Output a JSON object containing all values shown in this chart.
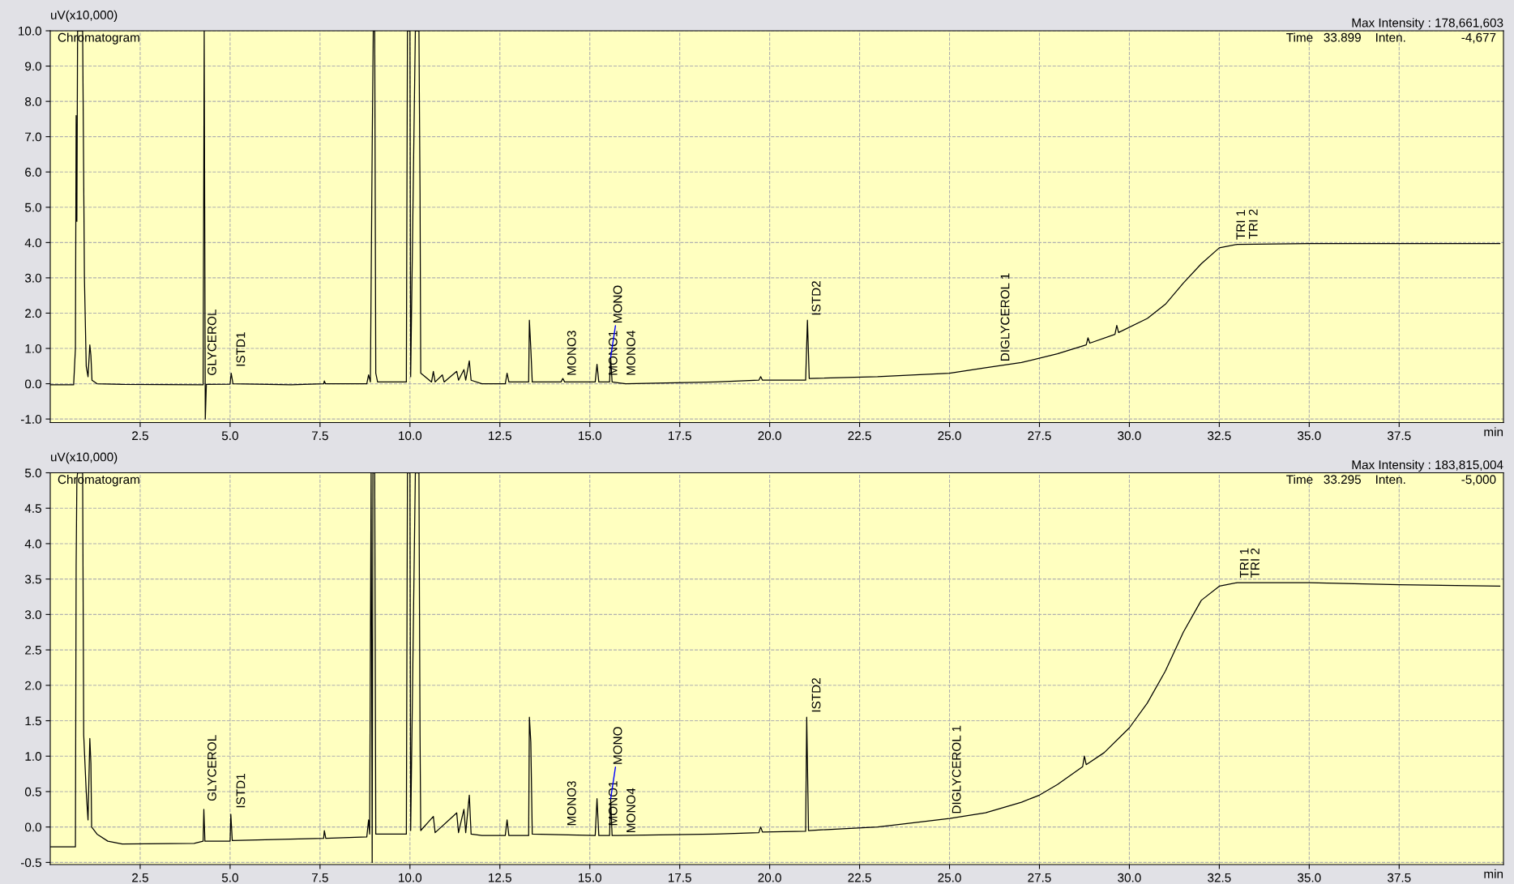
{
  "chart_data": [
    {
      "type": "line",
      "ylabel": "uV(x10,000)",
      "xlabel": "min",
      "grid": true,
      "legend": false,
      "marker": "none",
      "line_style": "solid",
      "xlim": [
        0,
        40.4
      ],
      "xticks": [
        {
          "value": 2.5,
          "label": "2.5"
        },
        {
          "value": 5,
          "label": "5.0"
        },
        {
          "value": 7.5,
          "label": "7.5"
        },
        {
          "value": 10,
          "label": "10.0"
        },
        {
          "value": 12.5,
          "label": "12.5"
        },
        {
          "value": 15,
          "label": "15.0"
        },
        {
          "value": 17.5,
          "label": "17.5"
        },
        {
          "value": 20,
          "label": "20.0"
        },
        {
          "value": 22.5,
          "label": "22.5"
        },
        {
          "value": 25,
          "label": "25.0"
        },
        {
          "value": 27.5,
          "label": "27.5"
        },
        {
          "value": 30,
          "label": "30.0"
        },
        {
          "value": 32.5,
          "label": "32.5"
        },
        {
          "value": 35,
          "label": "35.0"
        },
        {
          "value": 37.5,
          "label": "37.5"
        }
      ],
      "ylim": [
        -1.1,
        10.0
      ],
      "yticks": [
        {
          "value": -1,
          "label": "-1.0"
        },
        {
          "value": 0,
          "label": "0.0"
        },
        {
          "value": 1,
          "label": "1.0"
        },
        {
          "value": 2,
          "label": "2.0"
        },
        {
          "value": 3,
          "label": "3.0"
        },
        {
          "value": 4,
          "label": "4.0"
        },
        {
          "value": 5,
          "label": "5.0"
        },
        {
          "value": 6,
          "label": "6.0"
        },
        {
          "value": 7,
          "label": "7.0"
        },
        {
          "value": 8,
          "label": "8.0"
        },
        {
          "value": 9,
          "label": "9.0"
        },
        {
          "value": 10,
          "label": "10.0"
        }
      ],
      "series": [
        {
          "color": "#000000",
          "x": [
            0,
            0.65,
            0.7,
            0.72,
            0.74,
            0.76,
            0.85,
            0.9,
            0.95,
            1.0,
            1.05,
            1.1,
            1.13,
            1.16,
            1.3,
            2.0,
            4.25,
            4.28,
            4.31,
            4.34,
            5.0,
            5.03,
            5.08,
            6.7,
            7.6,
            7.62,
            7.65,
            8.8,
            8.85,
            8.9,
            8.95,
            8.98,
            9.02,
            9.05,
            9.1,
            9.9,
            9.93,
            10.0,
            10.02,
            10.15,
            10.25,
            10.28,
            10.3,
            10.6,
            10.65,
            10.7,
            10.9,
            10.95,
            11.3,
            11.35,
            11.5,
            11.55,
            11.65,
            11.7,
            12.0,
            12.65,
            12.7,
            12.75,
            13.3,
            13.32,
            13.36,
            13.4,
            14.2,
            14.25,
            14.3,
            15.15,
            15.2,
            15.25,
            15.55,
            15.58,
            15.62,
            16.0,
            18.5,
            19.7,
            19.75,
            19.8,
            21.0,
            21.05,
            21.1,
            23.0,
            25.0,
            26.0,
            27.0,
            28.0,
            28.8,
            28.85,
            28.9,
            29.6,
            29.65,
            29.7,
            30.5,
            31.0,
            31.5,
            32.0,
            32.5,
            33.0,
            35.0,
            40.3
          ],
          "values": [
            -0.03,
            -0.03,
            1.0,
            7.6,
            4.6,
            10.0,
            10.0,
            10.0,
            3.0,
            0.5,
            0.2,
            1.1,
            0.8,
            0.1,
            0.0,
            -0.02,
            -0.03,
            10.0,
            -1.0,
            -0.02,
            -0.01,
            0.3,
            0.0,
            -0.03,
            0.0,
            0.08,
            0.0,
            0.0,
            0.25,
            0.05,
            6.7,
            10.0,
            10.0,
            0.3,
            0.05,
            0.05,
            10.0,
            10.0,
            0.2,
            10.0,
            10.0,
            5.4,
            0.3,
            0.05,
            0.35,
            0.05,
            0.25,
            0.05,
            0.35,
            0.1,
            0.4,
            0.1,
            0.65,
            0.1,
            0.0,
            0.0,
            0.3,
            0.05,
            0.05,
            1.8,
            1.0,
            0.05,
            0.05,
            0.15,
            0.05,
            0.05,
            0.55,
            0.05,
            0.05,
            0.75,
            0.05,
            0.0,
            0.05,
            0.1,
            0.2,
            0.1,
            0.1,
            1.8,
            0.15,
            0.2,
            0.3,
            0.45,
            0.6,
            0.85,
            1.1,
            1.3,
            1.15,
            1.4,
            1.65,
            1.45,
            1.85,
            2.25,
            2.85,
            3.4,
            3.85,
            3.95,
            3.97,
            3.97
          ]
        }
      ],
      "annotations": [
        "Chromatogram",
        "Max Intensity : 178,661,603",
        "Time   33.899    Inten.                -4,677",
        {
          "text": "GLYCEROL",
          "x": 4.3,
          "y": 0.1
        },
        {
          "text": "ISTD1",
          "x": 5.1,
          "y": 0.35
        },
        {
          "text": "MONO3",
          "x": 14.3,
          "y": 0.1
        },
        {
          "text": "MONO1",
          "x": 15.45,
          "y": 0.1
        },
        {
          "text": "MONO",
          "x": 15.58,
          "y": 0.75
        },
        {
          "text": "MONO4",
          "x": 15.95,
          "y": 0.1
        },
        {
          "text": "ISTD2",
          "x": 21.1,
          "y": 1.8
        },
        {
          "text": "DIGLYCEROL 1",
          "x": 26.35,
          "y": 0.5
        },
        {
          "text": "TRI 1",
          "x": 32.9,
          "y": 3.95
        },
        {
          "text": "TRI 2",
          "x": 33.25,
          "y": 3.97
        }
      ]
    },
    {
      "type": "line",
      "ylabel": "uV(x10,000)",
      "xlabel": "min",
      "grid": true,
      "legend": false,
      "marker": "none",
      "line_style": "solid",
      "xlim": [
        0,
        40.4
      ],
      "xticks": [
        {
          "value": 2.5,
          "label": "2.5"
        },
        {
          "value": 5,
          "label": "5.0"
        },
        {
          "value": 7.5,
          "label": "7.5"
        },
        {
          "value": 10,
          "label": "10.0"
        },
        {
          "value": 12.5,
          "label": "12.5"
        },
        {
          "value": 15,
          "label": "15.0"
        },
        {
          "value": 17.5,
          "label": "17.5"
        },
        {
          "value": 20,
          "label": "20.0"
        },
        {
          "value": 22.5,
          "label": "22.5"
        },
        {
          "value": 25,
          "label": "25.0"
        },
        {
          "value": 27.5,
          "label": "27.5"
        },
        {
          "value": 30,
          "label": "30.0"
        },
        {
          "value": 32.5,
          "label": "32.5"
        },
        {
          "value": 35,
          "label": "35.0"
        },
        {
          "value": 37.5,
          "label": "37.5"
        }
      ],
      "ylim": [
        -0.53,
        5.0
      ],
      "yticks": [
        {
          "value": -0.5,
          "label": "-0.5"
        },
        {
          "value": 0,
          "label": "0.0"
        },
        {
          "value": 0.5,
          "label": "0.5"
        },
        {
          "value": 1,
          "label": "1.0"
        },
        {
          "value": 1.5,
          "label": "1.5"
        },
        {
          "value": 2,
          "label": "2.0"
        },
        {
          "value": 2.5,
          "label": "2.5"
        },
        {
          "value": 3,
          "label": "3.0"
        },
        {
          "value": 3.5,
          "label": "3.5"
        },
        {
          "value": 4,
          "label": "4.0"
        },
        {
          "value": 4.5,
          "label": "4.5"
        },
        {
          "value": 5,
          "label": "5.0"
        }
      ],
      "series": [
        {
          "color": "#000000",
          "x": [
            0,
            0.7,
            0.72,
            0.74,
            0.76,
            0.9,
            0.93,
            1.0,
            1.05,
            1.1,
            1.13,
            1.15,
            1.3,
            1.6,
            2.0,
            4.0,
            4.25,
            4.27,
            4.3,
            5.0,
            5.02,
            5.06,
            7.6,
            7.62,
            7.66,
            8.8,
            8.85,
            8.88,
            8.92,
            8.95,
            8.97,
            9.02,
            9.05,
            9.9,
            9.93,
            10.0,
            10.02,
            10.15,
            10.25,
            10.28,
            10.3,
            10.65,
            10.7,
            11.3,
            11.35,
            11.5,
            11.55,
            11.65,
            11.7,
            12.0,
            12.65,
            12.7,
            12.75,
            13.3,
            13.32,
            13.36,
            13.4,
            15.15,
            15.2,
            15.25,
            15.55,
            15.58,
            15.62,
            18.5,
            19.7,
            19.75,
            19.8,
            21.0,
            21.03,
            21.08,
            23.0,
            25.0,
            26.0,
            27.0,
            27.5,
            28.0,
            28.7,
            28.75,
            28.8,
            29.3,
            30.0,
            30.5,
            31.0,
            31.5,
            32.0,
            32.5,
            33.0,
            35.0,
            37.5,
            40.3
          ],
          "values": [
            -0.28,
            -0.28,
            3.7,
            4.9,
            5.0,
            5.0,
            1.3,
            0.5,
            0.1,
            1.25,
            0.9,
            0.0,
            -0.1,
            -0.2,
            -0.24,
            -0.23,
            -0.2,
            0.25,
            -0.2,
            -0.2,
            0.18,
            -0.19,
            -0.16,
            -0.05,
            -0.16,
            -0.14,
            0.1,
            -0.1,
            5.0,
            -0.5,
            5.0,
            5.0,
            -0.1,
            -0.1,
            5.0,
            5.0,
            -0.05,
            5.0,
            5.0,
            1.3,
            -0.05,
            0.15,
            -0.08,
            0.2,
            -0.08,
            0.25,
            -0.08,
            0.45,
            -0.1,
            -0.12,
            -0.12,
            0.1,
            -0.12,
            -0.12,
            1.55,
            1.2,
            -0.1,
            -0.12,
            0.4,
            -0.12,
            -0.12,
            0.4,
            -0.12,
            -0.1,
            -0.08,
            0.0,
            -0.07,
            -0.06,
            1.55,
            -0.05,
            0.0,
            0.12,
            0.2,
            0.35,
            0.45,
            0.6,
            0.85,
            1.0,
            0.88,
            1.05,
            1.4,
            1.75,
            2.2,
            2.75,
            3.2,
            3.4,
            3.45,
            3.45,
            3.42,
            3.4
          ]
        }
      ],
      "annotations": [
        "Chromatogram",
        "Max Intensity : 183,815,004",
        "Time   33.295    Inten.                -5,000",
        {
          "text": "GLYCEROL",
          "x": 4.3,
          "y": 0.3
        },
        {
          "text": "ISTD1",
          "x": 5.1,
          "y": 0.2
        },
        {
          "text": "MONO3",
          "x": 14.3,
          "y": -0.05
        },
        {
          "text": "MONO1",
          "x": 15.45,
          "y": -0.05
        },
        {
          "text": "MONO",
          "x": 15.58,
          "y": 0.4
        },
        {
          "text": "MONO4",
          "x": 15.95,
          "y": -0.15
        },
        {
          "text": "ISTD2",
          "x": 21.1,
          "y": 1.55
        },
        {
          "text": "DIGLYCEROL 1",
          "x": 25.0,
          "y": 0.12
        },
        {
          "text": "TRI 1",
          "x": 33.0,
          "y": 3.45
        },
        {
          "text": "TRI 2",
          "x": 33.3,
          "y": 3.45
        }
      ]
    }
  ]
}
